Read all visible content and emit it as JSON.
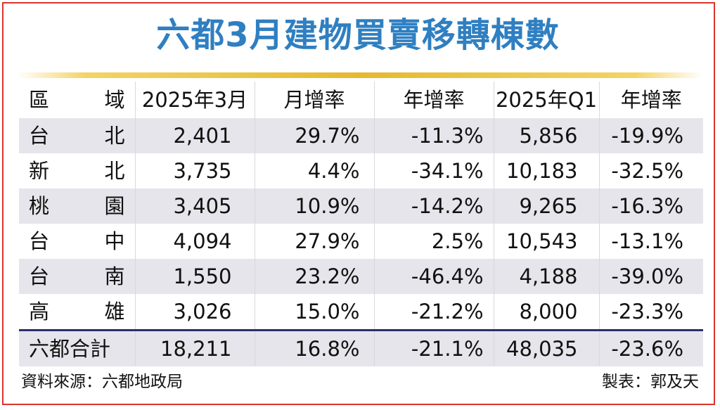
{
  "title": "六都3月建物買賣移轉棟數",
  "header": {
    "region_char_1": "區",
    "region_char_2": "域",
    "col1": "2025年3月",
    "col2": "月增率",
    "col3": "年增率",
    "col4": "2025年Q1",
    "col5": "年增率"
  },
  "chart_data": {
    "type": "table",
    "title": "六都3月建物買賣移轉棟數",
    "columns": [
      "區域",
      "2025年3月",
      "月增率",
      "年增率",
      "2025年Q1",
      "年增率"
    ],
    "rows": [
      {
        "region_char_1": "台",
        "region_char_2": "北",
        "mar": "2,401",
        "mom": "29.7%",
        "yoy": "-11.3%",
        "q1": "5,856",
        "q1_yoy": "-19.9%"
      },
      {
        "region_char_1": "新",
        "region_char_2": "北",
        "mar": "3,735",
        "mom": "4.4%",
        "yoy": "-34.1%",
        "q1": "10,183",
        "q1_yoy": "-32.5%"
      },
      {
        "region_char_1": "桃",
        "region_char_2": "園",
        "mar": "3,405",
        "mom": "10.9%",
        "yoy": "-14.2%",
        "q1": "9,265",
        "q1_yoy": "-16.3%"
      },
      {
        "region_char_1": "台",
        "region_char_2": "中",
        "mar": "4,094",
        "mom": "27.9%",
        "yoy": "2.5%",
        "q1": "10,543",
        "q1_yoy": "-13.1%"
      },
      {
        "region_char_1": "台",
        "region_char_2": "南",
        "mar": "1,550",
        "mom": "23.2%",
        "yoy": "-46.4%",
        "q1": "4,188",
        "q1_yoy": "-39.0%"
      },
      {
        "region_char_1": "高",
        "region_char_2": "雄",
        "mar": "3,026",
        "mom": "15.0%",
        "yoy": "-21.2%",
        "q1": "8,000",
        "q1_yoy": "-23.3%"
      }
    ],
    "total": {
      "label": "六都合計",
      "mar": "18,211",
      "mom": "16.8%",
      "yoy": "-21.1%",
      "q1": "48,035",
      "q1_yoy": "-23.6%"
    }
  },
  "footer": {
    "source": "資料來源：六都地政局",
    "credit": "製表：郭及天"
  },
  "colors": {
    "title": "#2f7fc1",
    "frame_border": "#d9342b",
    "title_rule": "#e5b92f",
    "row_shade": "#e5e5eb",
    "total_rule": "#2a2f6b"
  }
}
